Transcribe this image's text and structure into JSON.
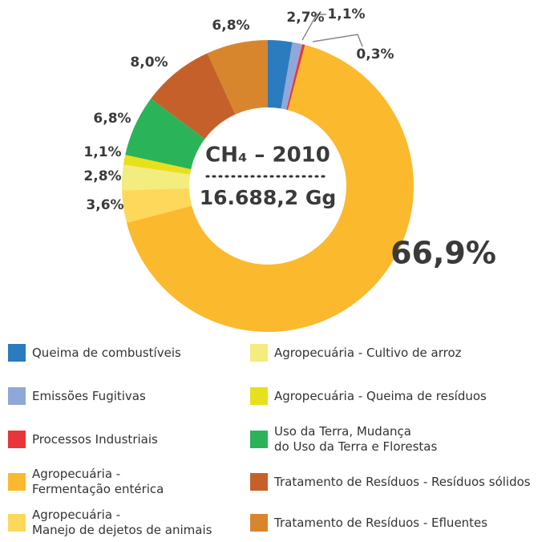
{
  "chart_data": {
    "type": "pie",
    "center_title": "CH₄ – 2010",
    "center_value": "16.688,2 Gg",
    "categories": [
      "Queima de combustíveis",
      "Emissões Fugitivas",
      "Processos Industriais",
      "Agropecuária -\nFermentação entérica",
      "Agropecuária -\nManejo de dejetos de animais",
      "Agropecuária - Cultivo de arroz",
      "Agropecuária - Queima de resíduos",
      "Uso da Terra, Mudança\ndo Uso da Terra e Florestas",
      "Tratamento de Resíduos - Resíduos sólidos",
      "Tratamento de Resíduos - Efluentes"
    ],
    "values": [
      2.7,
      1.1,
      0.3,
      66.9,
      3.6,
      2.8,
      1.1,
      6.8,
      8.0,
      6.8
    ],
    "value_labels": [
      "2,7%",
      "1,1%",
      "0,3%",
      "66,9%",
      "3,6%",
      "2,8%",
      "1,1%",
      "6,8%",
      "8,0%",
      "6,8%"
    ],
    "colors": [
      "#2b7bbf",
      "#8fa8d8",
      "#e8353a",
      "#fbb92e",
      "#fdd85a",
      "#f3ec7e",
      "#e8e01c",
      "#2bb35a",
      "#c6602a",
      "#d8862e"
    ]
  }
}
